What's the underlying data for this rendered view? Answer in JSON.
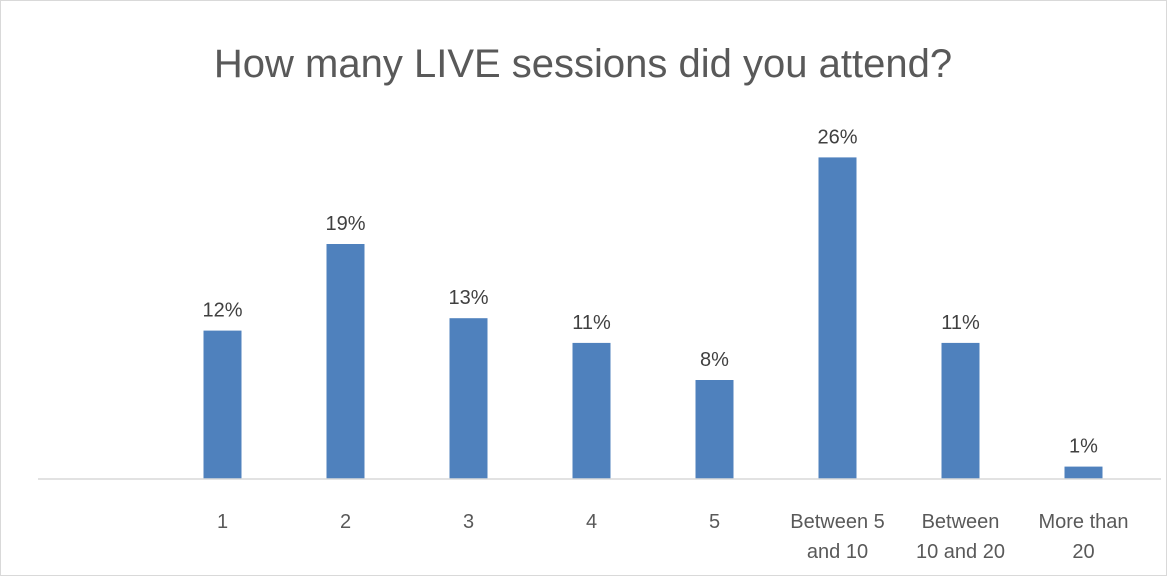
{
  "chart_data": {
    "type": "bar",
    "title": "How many LIVE sessions did you attend?",
    "categories": [
      "1",
      "2",
      "3",
      "4",
      "5",
      "Between 5 and 10",
      "Between 10 and 20",
      "More than 20"
    ],
    "category_lines": [
      [
        "1"
      ],
      [
        "2"
      ],
      [
        "3"
      ],
      [
        "4"
      ],
      [
        "5"
      ],
      [
        "Between 5",
        "and 10"
      ],
      [
        "Between",
        "10 and 20"
      ],
      [
        "More than",
        "20"
      ]
    ],
    "values": [
      12,
      19,
      13,
      11,
      8,
      26,
      11,
      1
    ],
    "data_labels": [
      "12%",
      "19%",
      "13%",
      "11%",
      "8%",
      "26%",
      "11%",
      "1%"
    ],
    "ylim": [
      0,
      27
    ],
    "grid": false,
    "legend": "none",
    "bar_color": "#4f81bd",
    "axis_color": "#d9d9d9"
  }
}
